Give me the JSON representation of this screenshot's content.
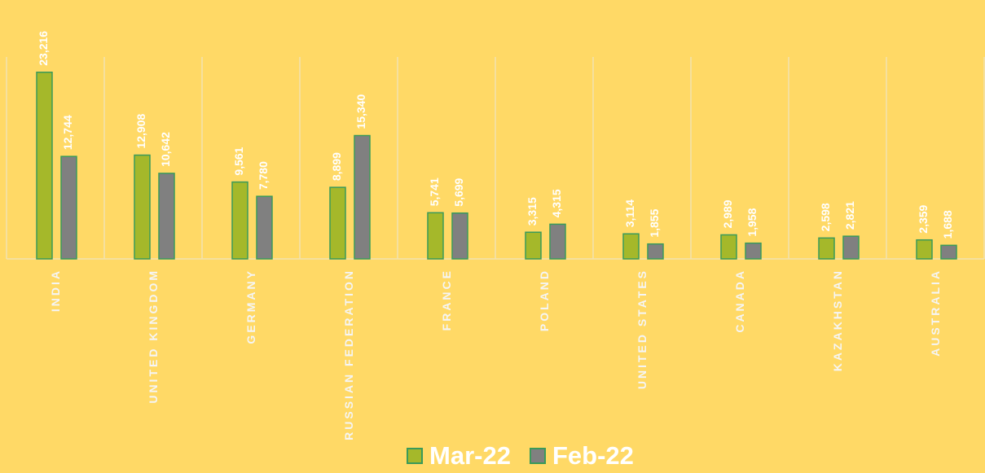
{
  "chart_data": {
    "type": "bar",
    "categories": [
      "INDIA",
      "UNITED KINGDOM",
      "GERMANY",
      "RUSSIAN FEDERATION",
      "FRANCE",
      "POLAND",
      "UNITED STATES",
      "CANADA",
      "KAZAKHSTAN",
      "AUSTRALIA"
    ],
    "series": [
      {
        "name": "Mar-22",
        "color": "#a5b82a",
        "values": [
          23216,
          12908,
          9561,
          8899,
          5741,
          3315,
          3114,
          2989,
          2598,
          2359
        ],
        "value_labels": [
          "23,216",
          "12,908",
          "9,561",
          "8,899",
          "5,741",
          "3,315",
          "3,114",
          "2,989",
          "2,598",
          "2,359"
        ]
      },
      {
        "name": "Feb-22",
        "color": "#808080",
        "values": [
          12744,
          10642,
          7780,
          15340,
          5699,
          4315,
          1855,
          1958,
          2821,
          1688
        ],
        "value_labels": [
          "12,744",
          "10,642",
          "7,780",
          "15,340",
          "5,699",
          "4,315",
          "1,855",
          "1,958",
          "2,821",
          "1,688"
        ]
      }
    ],
    "ylim": [
      0,
      32000
    ],
    "legend": "bottom"
  }
}
